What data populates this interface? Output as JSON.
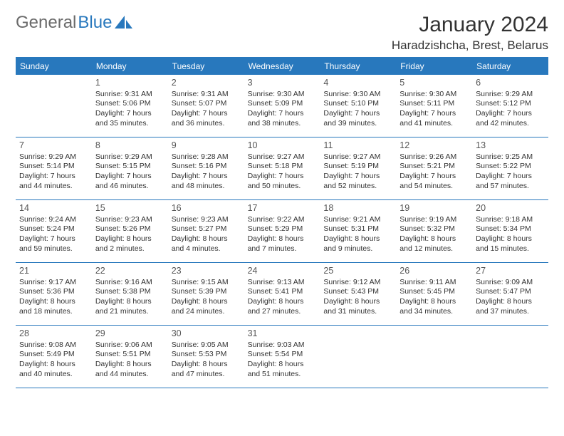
{
  "logo": {
    "text1": "General",
    "text2": "Blue"
  },
  "title": "January 2024",
  "location": "Haradzishcha, Brest, Belarus",
  "colors": {
    "header_bg": "#2878bd",
    "header_fg": "#ffffff",
    "border": "#2878bd",
    "logo_gray": "#6a6a6a",
    "logo_blue": "#2878bd",
    "text": "#333333",
    "background": "#ffffff"
  },
  "dayHeaders": [
    "Sunday",
    "Monday",
    "Tuesday",
    "Wednesday",
    "Thursday",
    "Friday",
    "Saturday"
  ],
  "weeks": [
    [
      {
        "num": "",
        "sunrise": "",
        "sunset": "",
        "daylight": ""
      },
      {
        "num": "1",
        "sunrise": "9:31 AM",
        "sunset": "5:06 PM",
        "daylight": "7 hours and 35 minutes."
      },
      {
        "num": "2",
        "sunrise": "9:31 AM",
        "sunset": "5:07 PM",
        "daylight": "7 hours and 36 minutes."
      },
      {
        "num": "3",
        "sunrise": "9:30 AM",
        "sunset": "5:09 PM",
        "daylight": "7 hours and 38 minutes."
      },
      {
        "num": "4",
        "sunrise": "9:30 AM",
        "sunset": "5:10 PM",
        "daylight": "7 hours and 39 minutes."
      },
      {
        "num": "5",
        "sunrise": "9:30 AM",
        "sunset": "5:11 PM",
        "daylight": "7 hours and 41 minutes."
      },
      {
        "num": "6",
        "sunrise": "9:29 AM",
        "sunset": "5:12 PM",
        "daylight": "7 hours and 42 minutes."
      }
    ],
    [
      {
        "num": "7",
        "sunrise": "9:29 AM",
        "sunset": "5:14 PM",
        "daylight": "7 hours and 44 minutes."
      },
      {
        "num": "8",
        "sunrise": "9:29 AM",
        "sunset": "5:15 PM",
        "daylight": "7 hours and 46 minutes."
      },
      {
        "num": "9",
        "sunrise": "9:28 AM",
        "sunset": "5:16 PM",
        "daylight": "7 hours and 48 minutes."
      },
      {
        "num": "10",
        "sunrise": "9:27 AM",
        "sunset": "5:18 PM",
        "daylight": "7 hours and 50 minutes."
      },
      {
        "num": "11",
        "sunrise": "9:27 AM",
        "sunset": "5:19 PM",
        "daylight": "7 hours and 52 minutes."
      },
      {
        "num": "12",
        "sunrise": "9:26 AM",
        "sunset": "5:21 PM",
        "daylight": "7 hours and 54 minutes."
      },
      {
        "num": "13",
        "sunrise": "9:25 AM",
        "sunset": "5:22 PM",
        "daylight": "7 hours and 57 minutes."
      }
    ],
    [
      {
        "num": "14",
        "sunrise": "9:24 AM",
        "sunset": "5:24 PM",
        "daylight": "7 hours and 59 minutes."
      },
      {
        "num": "15",
        "sunrise": "9:23 AM",
        "sunset": "5:26 PM",
        "daylight": "8 hours and 2 minutes."
      },
      {
        "num": "16",
        "sunrise": "9:23 AM",
        "sunset": "5:27 PM",
        "daylight": "8 hours and 4 minutes."
      },
      {
        "num": "17",
        "sunrise": "9:22 AM",
        "sunset": "5:29 PM",
        "daylight": "8 hours and 7 minutes."
      },
      {
        "num": "18",
        "sunrise": "9:21 AM",
        "sunset": "5:31 PM",
        "daylight": "8 hours and 9 minutes."
      },
      {
        "num": "19",
        "sunrise": "9:19 AM",
        "sunset": "5:32 PM",
        "daylight": "8 hours and 12 minutes."
      },
      {
        "num": "20",
        "sunrise": "9:18 AM",
        "sunset": "5:34 PM",
        "daylight": "8 hours and 15 minutes."
      }
    ],
    [
      {
        "num": "21",
        "sunrise": "9:17 AM",
        "sunset": "5:36 PM",
        "daylight": "8 hours and 18 minutes."
      },
      {
        "num": "22",
        "sunrise": "9:16 AM",
        "sunset": "5:38 PM",
        "daylight": "8 hours and 21 minutes."
      },
      {
        "num": "23",
        "sunrise": "9:15 AM",
        "sunset": "5:39 PM",
        "daylight": "8 hours and 24 minutes."
      },
      {
        "num": "24",
        "sunrise": "9:13 AM",
        "sunset": "5:41 PM",
        "daylight": "8 hours and 27 minutes."
      },
      {
        "num": "25",
        "sunrise": "9:12 AM",
        "sunset": "5:43 PM",
        "daylight": "8 hours and 31 minutes."
      },
      {
        "num": "26",
        "sunrise": "9:11 AM",
        "sunset": "5:45 PM",
        "daylight": "8 hours and 34 minutes."
      },
      {
        "num": "27",
        "sunrise": "9:09 AM",
        "sunset": "5:47 PM",
        "daylight": "8 hours and 37 minutes."
      }
    ],
    [
      {
        "num": "28",
        "sunrise": "9:08 AM",
        "sunset": "5:49 PM",
        "daylight": "8 hours and 40 minutes."
      },
      {
        "num": "29",
        "sunrise": "9:06 AM",
        "sunset": "5:51 PM",
        "daylight": "8 hours and 44 minutes."
      },
      {
        "num": "30",
        "sunrise": "9:05 AM",
        "sunset": "5:53 PM",
        "daylight": "8 hours and 47 minutes."
      },
      {
        "num": "31",
        "sunrise": "9:03 AM",
        "sunset": "5:54 PM",
        "daylight": "8 hours and 51 minutes."
      },
      {
        "num": "",
        "sunrise": "",
        "sunset": "",
        "daylight": ""
      },
      {
        "num": "",
        "sunrise": "",
        "sunset": "",
        "daylight": ""
      },
      {
        "num": "",
        "sunrise": "",
        "sunset": "",
        "daylight": ""
      }
    ]
  ],
  "labels": {
    "sunrise": "Sunrise:",
    "sunset": "Sunset:",
    "daylight": "Daylight:"
  }
}
